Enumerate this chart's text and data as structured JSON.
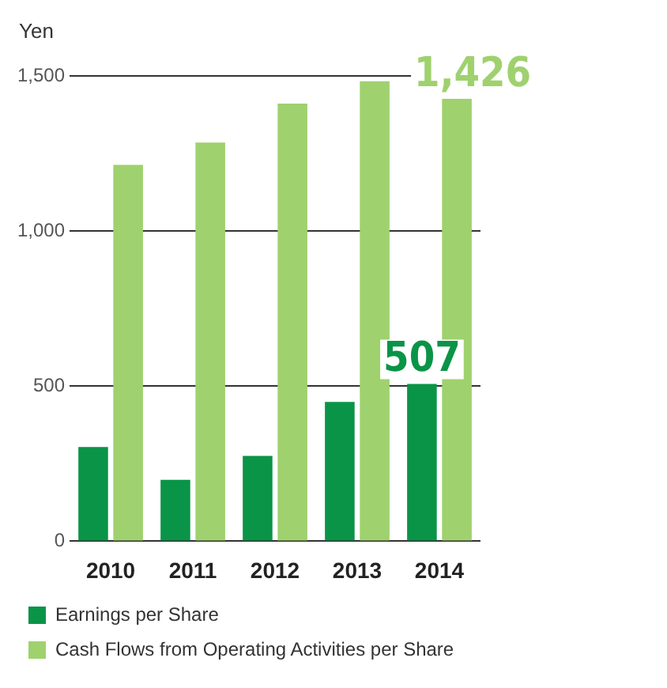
{
  "chart_data": {
    "type": "bar",
    "ylabel": "Yen",
    "categories": [
      "2010",
      "2011",
      "2012",
      "2013",
      "2014"
    ],
    "series": [
      {
        "name": "Earnings per Share",
        "color": "#0a9447",
        "values": [
          304,
          198,
          275,
          449,
          507
        ],
        "value_labels": [
          null,
          null,
          null,
          null,
          "507"
        ]
      },
      {
        "name": "Cash Flows from Operating Activities per Share",
        "color": "#9fd16e",
        "values": [
          1213,
          1285,
          1411,
          1483,
          1426
        ],
        "value_labels": [
          null,
          null,
          null,
          null,
          "1,426"
        ]
      }
    ],
    "ylim": [
      0,
      1500
    ],
    "yticks": [
      0,
      {
        "value": 500,
        "label": "500"
      },
      {
        "value": 1000,
        "label": "1,000"
      },
      {
        "value": 1500,
        "label": "1,500"
      }
    ],
    "grid": "y",
    "legend": "bottom left"
  }
}
